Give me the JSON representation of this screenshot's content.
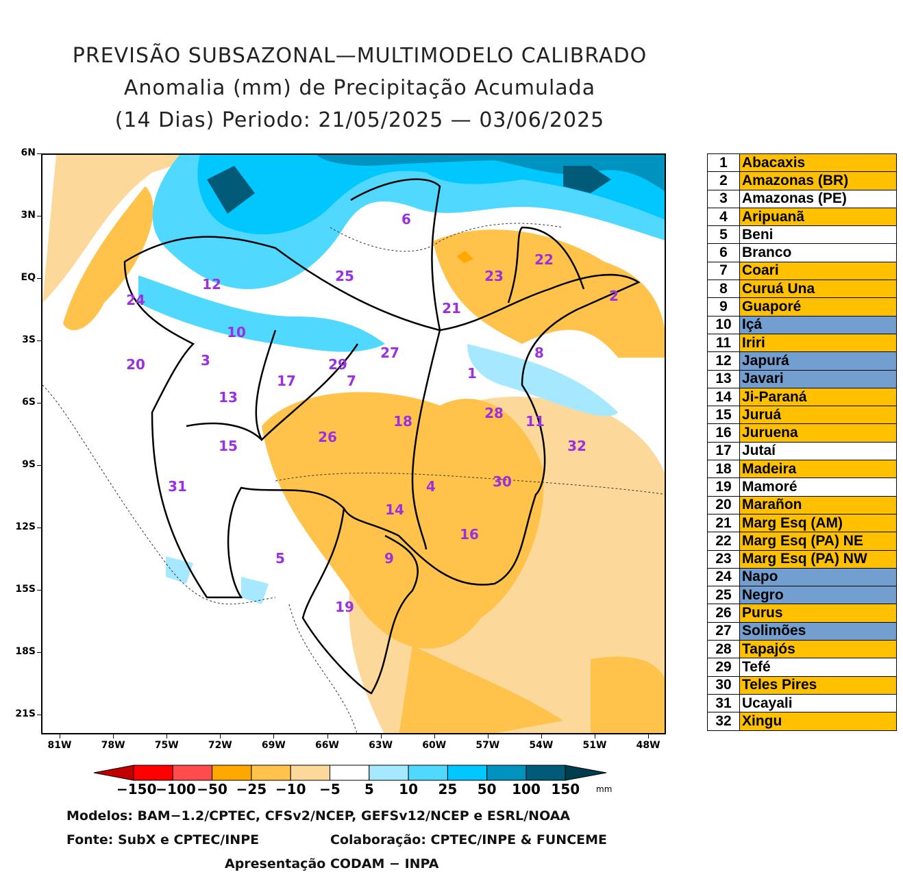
{
  "title": {
    "line1": "PREVISÃO SUBSAZONAL—MULTIMODELO CALIBRADO",
    "line2": "Anomalia (mm) de Precipitação Acumulada",
    "line3": "(14 Dias) Periodo: 21/05/2025 — 03/06/2025"
  },
  "map": {
    "lat_labels": [
      "6N",
      "3N",
      "EQ",
      "3S",
      "6S",
      "9S",
      "12S",
      "15S",
      "18S",
      "21S"
    ],
    "lon_labels": [
      "81W",
      "78W",
      "75W",
      "72W",
      "69W",
      "66W",
      "63W",
      "60W",
      "57W",
      "54W",
      "51W",
      "48W"
    ],
    "basin_labels": [
      "1",
      "2",
      "3",
      "4",
      "5",
      "6",
      "7",
      "8",
      "9",
      "10",
      "11",
      "12",
      "13",
      "14",
      "15",
      "16",
      "17",
      "18",
      "19",
      "20",
      "21",
      "22",
      "23",
      "24",
      "25",
      "26",
      "27",
      "28",
      "29",
      "30",
      "31",
      "32"
    ],
    "label_color": "#9b30e0"
  },
  "colorbar": {
    "colors": [
      "#c00000",
      "#ff0000",
      "#ff4b4b",
      "#ffa800",
      "#ffc24a",
      "#fcd99a",
      "#ffffff",
      "#a6e8ff",
      "#50d8ff",
      "#00c8ff",
      "#0093bf",
      "#005a78",
      "#003c50"
    ],
    "labels": [
      "−150",
      "−100",
      "−50",
      "−25",
      "−10",
      "−5",
      "5",
      "10",
      "25",
      "50",
      "100",
      "150"
    ],
    "unit": "mm"
  },
  "footer": {
    "models": "Modelos: BAM−1.2/CPTEC, CFSv2/NCEP, GEFSv12/NCEP e ESRL/NOAA",
    "source": "Fonte: SubX e CPTEC/INPE",
    "collab": "Colaboração: CPTEC/INPE & FUNCEME",
    "presentation": "Apresentação CODAM − INPA"
  },
  "legend_colors": {
    "orange": "#ffc000",
    "blue": "#729fcf",
    "white": "#ffffff"
  },
  "legend": [
    {
      "n": "1",
      "name": "Abacaxis",
      "c": "orange"
    },
    {
      "n": "2",
      "name": "Amazonas (BR)",
      "c": "orange"
    },
    {
      "n": "3",
      "name": "Amazonas (PE)",
      "c": "white"
    },
    {
      "n": "4",
      "name": "Aripuanã",
      "c": "orange"
    },
    {
      "n": "5",
      "name": "Beni",
      "c": "white"
    },
    {
      "n": "6",
      "name": "Branco",
      "c": "white"
    },
    {
      "n": "7",
      "name": "Coari",
      "c": "orange"
    },
    {
      "n": "8",
      "name": "Curuá Una",
      "c": "orange"
    },
    {
      "n": "9",
      "name": "Guaporé",
      "c": "orange"
    },
    {
      "n": "10",
      "name": "Içá",
      "c": "blue"
    },
    {
      "n": "11",
      "name": "Iriri",
      "c": "orange"
    },
    {
      "n": "12",
      "name": "Japurá",
      "c": "blue"
    },
    {
      "n": "13",
      "name": "Javari",
      "c": "blue"
    },
    {
      "n": "14",
      "name": "Ji-Paraná",
      "c": "orange"
    },
    {
      "n": "15",
      "name": "Juruá",
      "c": "orange"
    },
    {
      "n": "16",
      "name": "Juruena",
      "c": "orange"
    },
    {
      "n": "17",
      "name": "Jutaí",
      "c": "white"
    },
    {
      "n": "18",
      "name": "Madeira",
      "c": "orange"
    },
    {
      "n": "19",
      "name": "Mamoré",
      "c": "white"
    },
    {
      "n": "20",
      "name": "Marañon",
      "c": "orange"
    },
    {
      "n": "21",
      "name": "Marg Esq (AM)",
      "c": "orange"
    },
    {
      "n": "22",
      "name": "Marg Esq (PA) NE",
      "c": "orange"
    },
    {
      "n": "23",
      "name": "Marg Esq (PA) NW",
      "c": "orange"
    },
    {
      "n": "24",
      "name": "Napo",
      "c": "blue"
    },
    {
      "n": "25",
      "name": "Negro",
      "c": "blue"
    },
    {
      "n": "26",
      "name": "Purus",
      "c": "orange"
    },
    {
      "n": "27",
      "name": "Solimões",
      "c": "blue"
    },
    {
      "n": "28",
      "name": "Tapajós",
      "c": "orange"
    },
    {
      "n": "29",
      "name": "Tefé",
      "c": "white"
    },
    {
      "n": "30",
      "name": "Teles Pires",
      "c": "orange"
    },
    {
      "n": "31",
      "name": "Ucayali",
      "c": "white"
    },
    {
      "n": "32",
      "name": "Xingu",
      "c": "orange"
    }
  ]
}
